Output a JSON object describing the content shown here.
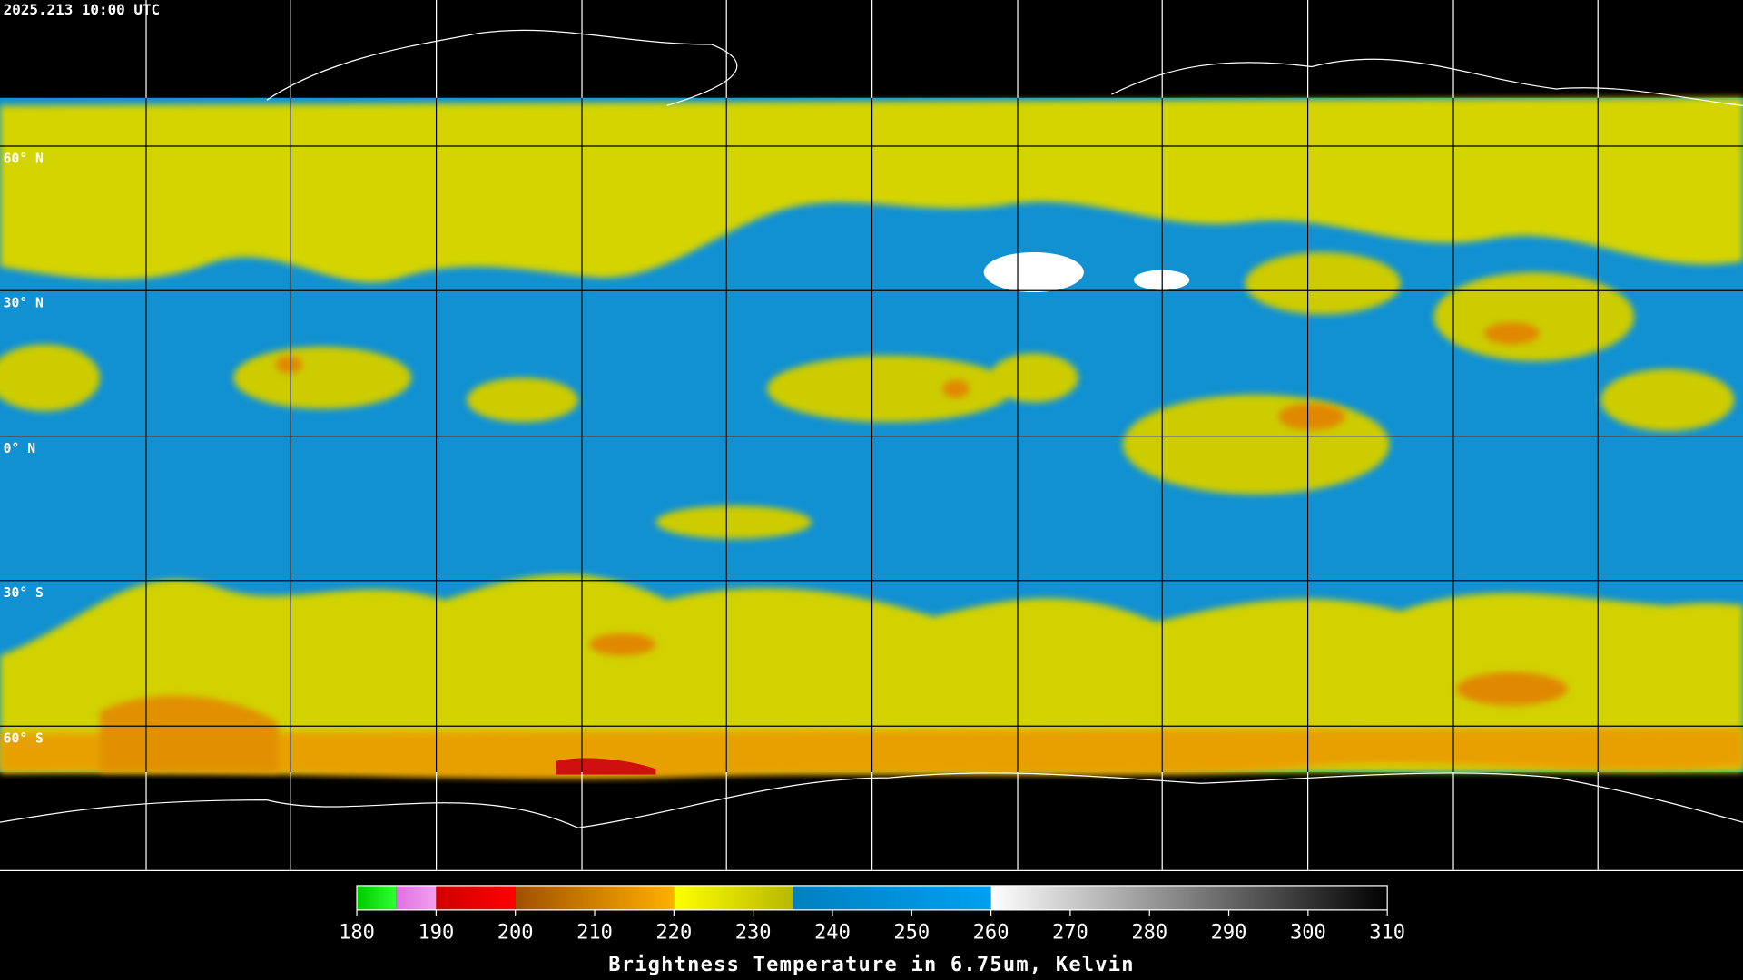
{
  "header": {
    "timestamp": "2025.213 10:00 UTC"
  },
  "map": {
    "lat_labels": [
      "60° N",
      "30° N",
      "0° N",
      "30° S",
      "60° S"
    ]
  },
  "colorbar": {
    "title": "Brightness Temperature in 6.75um, Kelvin",
    "range": [
      180,
      310
    ],
    "ticks": [
      180,
      190,
      200,
      210,
      220,
      230,
      240,
      250,
      260,
      270,
      280,
      290,
      300,
      310
    ],
    "segments": [
      {
        "from": 180,
        "to": 185,
        "start_color": "#00c800",
        "end_color": "#30ff30"
      },
      {
        "from": 185,
        "to": 190,
        "start_color": "#e070e0",
        "end_color": "#f0a0f0"
      },
      {
        "from": 190,
        "to": 200,
        "start_color": "#d00000",
        "end_color": "#ff0000"
      },
      {
        "from": 200,
        "to": 220,
        "start_color": "#a05000",
        "end_color": "#ffb000"
      },
      {
        "from": 220,
        "to": 235,
        "start_color": "#ffff00",
        "end_color": "#b8b800"
      },
      {
        "from": 235,
        "to": 260,
        "start_color": "#0080c0",
        "end_color": "#00a0f0"
      },
      {
        "from": 260,
        "to": 310,
        "start_color": "#ffffff",
        "end_color": "#000000"
      }
    ]
  }
}
